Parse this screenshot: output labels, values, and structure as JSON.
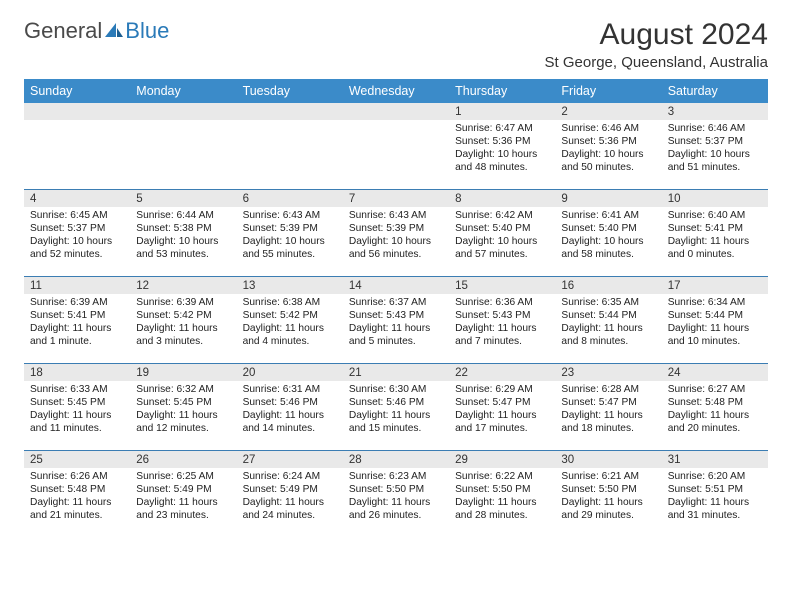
{
  "logo": {
    "part1": "General",
    "part2": "Blue"
  },
  "title": "August 2024",
  "location": "St George, Queensland, Australia",
  "dow": [
    "Sunday",
    "Monday",
    "Tuesday",
    "Wednesday",
    "Thursday",
    "Friday",
    "Saturday"
  ],
  "colors": {
    "header_bar": "#3b8bc9",
    "week_divider": "#3b7db3",
    "daynum_bg": "#e9e9e9",
    "text": "#222222",
    "logo_blue": "#2a7ab8"
  },
  "weeks": [
    [
      {
        "n": "",
        "lines": []
      },
      {
        "n": "",
        "lines": []
      },
      {
        "n": "",
        "lines": []
      },
      {
        "n": "",
        "lines": []
      },
      {
        "n": "1",
        "lines": [
          "Sunrise: 6:47 AM",
          "Sunset: 5:36 PM",
          "Daylight: 10 hours",
          "and 48 minutes."
        ]
      },
      {
        "n": "2",
        "lines": [
          "Sunrise: 6:46 AM",
          "Sunset: 5:36 PM",
          "Daylight: 10 hours",
          "and 50 minutes."
        ]
      },
      {
        "n": "3",
        "lines": [
          "Sunrise: 6:46 AM",
          "Sunset: 5:37 PM",
          "Daylight: 10 hours",
          "and 51 minutes."
        ]
      }
    ],
    [
      {
        "n": "4",
        "lines": [
          "Sunrise: 6:45 AM",
          "Sunset: 5:37 PM",
          "Daylight: 10 hours",
          "and 52 minutes."
        ]
      },
      {
        "n": "5",
        "lines": [
          "Sunrise: 6:44 AM",
          "Sunset: 5:38 PM",
          "Daylight: 10 hours",
          "and 53 minutes."
        ]
      },
      {
        "n": "6",
        "lines": [
          "Sunrise: 6:43 AM",
          "Sunset: 5:39 PM",
          "Daylight: 10 hours",
          "and 55 minutes."
        ]
      },
      {
        "n": "7",
        "lines": [
          "Sunrise: 6:43 AM",
          "Sunset: 5:39 PM",
          "Daylight: 10 hours",
          "and 56 minutes."
        ]
      },
      {
        "n": "8",
        "lines": [
          "Sunrise: 6:42 AM",
          "Sunset: 5:40 PM",
          "Daylight: 10 hours",
          "and 57 minutes."
        ]
      },
      {
        "n": "9",
        "lines": [
          "Sunrise: 6:41 AM",
          "Sunset: 5:40 PM",
          "Daylight: 10 hours",
          "and 58 minutes."
        ]
      },
      {
        "n": "10",
        "lines": [
          "Sunrise: 6:40 AM",
          "Sunset: 5:41 PM",
          "Daylight: 11 hours",
          "and 0 minutes."
        ]
      }
    ],
    [
      {
        "n": "11",
        "lines": [
          "Sunrise: 6:39 AM",
          "Sunset: 5:41 PM",
          "Daylight: 11 hours",
          "and 1 minute."
        ]
      },
      {
        "n": "12",
        "lines": [
          "Sunrise: 6:39 AM",
          "Sunset: 5:42 PM",
          "Daylight: 11 hours",
          "and 3 minutes."
        ]
      },
      {
        "n": "13",
        "lines": [
          "Sunrise: 6:38 AM",
          "Sunset: 5:42 PM",
          "Daylight: 11 hours",
          "and 4 minutes."
        ]
      },
      {
        "n": "14",
        "lines": [
          "Sunrise: 6:37 AM",
          "Sunset: 5:43 PM",
          "Daylight: 11 hours",
          "and 5 minutes."
        ]
      },
      {
        "n": "15",
        "lines": [
          "Sunrise: 6:36 AM",
          "Sunset: 5:43 PM",
          "Daylight: 11 hours",
          "and 7 minutes."
        ]
      },
      {
        "n": "16",
        "lines": [
          "Sunrise: 6:35 AM",
          "Sunset: 5:44 PM",
          "Daylight: 11 hours",
          "and 8 minutes."
        ]
      },
      {
        "n": "17",
        "lines": [
          "Sunrise: 6:34 AM",
          "Sunset: 5:44 PM",
          "Daylight: 11 hours",
          "and 10 minutes."
        ]
      }
    ],
    [
      {
        "n": "18",
        "lines": [
          "Sunrise: 6:33 AM",
          "Sunset: 5:45 PM",
          "Daylight: 11 hours",
          "and 11 minutes."
        ]
      },
      {
        "n": "19",
        "lines": [
          "Sunrise: 6:32 AM",
          "Sunset: 5:45 PM",
          "Daylight: 11 hours",
          "and 12 minutes."
        ]
      },
      {
        "n": "20",
        "lines": [
          "Sunrise: 6:31 AM",
          "Sunset: 5:46 PM",
          "Daylight: 11 hours",
          "and 14 minutes."
        ]
      },
      {
        "n": "21",
        "lines": [
          "Sunrise: 6:30 AM",
          "Sunset: 5:46 PM",
          "Daylight: 11 hours",
          "and 15 minutes."
        ]
      },
      {
        "n": "22",
        "lines": [
          "Sunrise: 6:29 AM",
          "Sunset: 5:47 PM",
          "Daylight: 11 hours",
          "and 17 minutes."
        ]
      },
      {
        "n": "23",
        "lines": [
          "Sunrise: 6:28 AM",
          "Sunset: 5:47 PM",
          "Daylight: 11 hours",
          "and 18 minutes."
        ]
      },
      {
        "n": "24",
        "lines": [
          "Sunrise: 6:27 AM",
          "Sunset: 5:48 PM",
          "Daylight: 11 hours",
          "and 20 minutes."
        ]
      }
    ],
    [
      {
        "n": "25",
        "lines": [
          "Sunrise: 6:26 AM",
          "Sunset: 5:48 PM",
          "Daylight: 11 hours",
          "and 21 minutes."
        ]
      },
      {
        "n": "26",
        "lines": [
          "Sunrise: 6:25 AM",
          "Sunset: 5:49 PM",
          "Daylight: 11 hours",
          "and 23 minutes."
        ]
      },
      {
        "n": "27",
        "lines": [
          "Sunrise: 6:24 AM",
          "Sunset: 5:49 PM",
          "Daylight: 11 hours",
          "and 24 minutes."
        ]
      },
      {
        "n": "28",
        "lines": [
          "Sunrise: 6:23 AM",
          "Sunset: 5:50 PM",
          "Daylight: 11 hours",
          "and 26 minutes."
        ]
      },
      {
        "n": "29",
        "lines": [
          "Sunrise: 6:22 AM",
          "Sunset: 5:50 PM",
          "Daylight: 11 hours",
          "and 28 minutes."
        ]
      },
      {
        "n": "30",
        "lines": [
          "Sunrise: 6:21 AM",
          "Sunset: 5:50 PM",
          "Daylight: 11 hours",
          "and 29 minutes."
        ]
      },
      {
        "n": "31",
        "lines": [
          "Sunrise: 6:20 AM",
          "Sunset: 5:51 PM",
          "Daylight: 11 hours",
          "and 31 minutes."
        ]
      }
    ]
  ]
}
